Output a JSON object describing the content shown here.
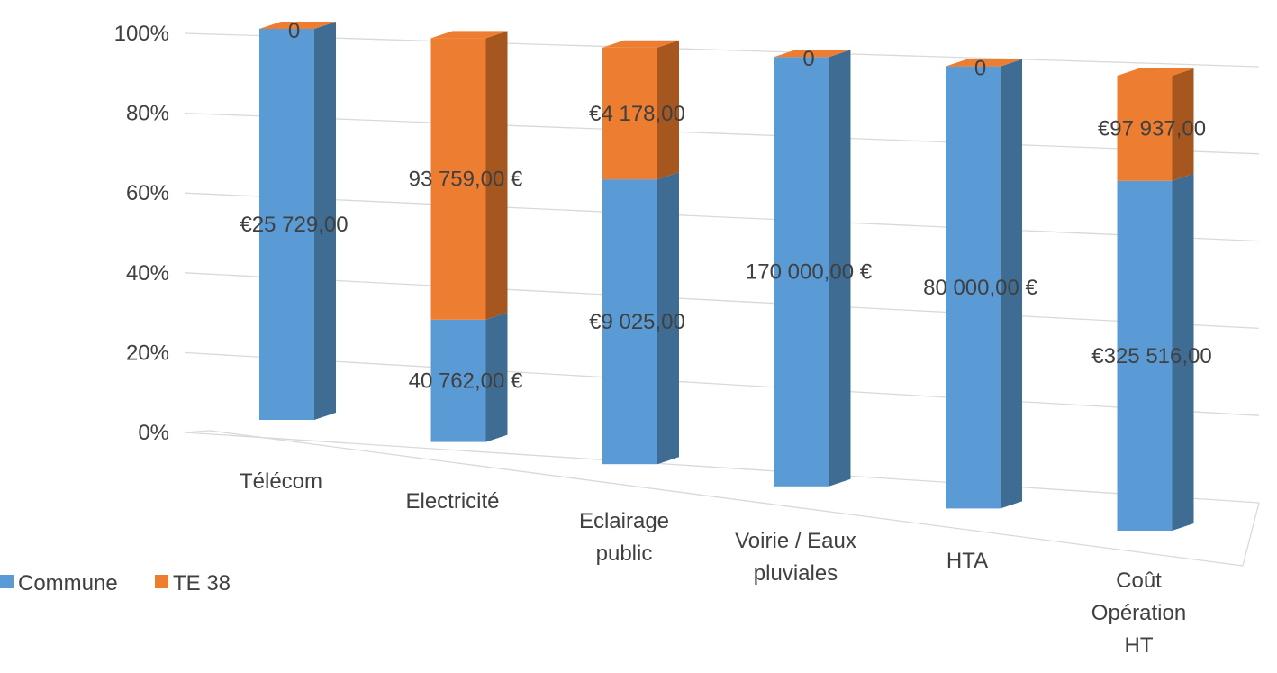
{
  "chart_data": {
    "type": "bar",
    "stacked": true,
    "normalized": true,
    "three_d": true,
    "categories": [
      [
        "Télécom"
      ],
      [
        "Electricité"
      ],
      [
        "Eclairage",
        "public"
      ],
      [
        "Voirie / Eaux",
        "pluviales"
      ],
      [
        "HTA"
      ],
      [
        "Coût",
        "Opération",
        "HT"
      ]
    ],
    "series": [
      {
        "name": "Commune",
        "color": "#5b9bd5",
        "side_color": "#3f6c93",
        "values": [
          25729,
          40762,
          9025,
          170000,
          80000,
          325516
        ],
        "labels": [
          "€25 729,00",
          "40 762,00 €",
          "€9 025,00",
          "170 000,00 €",
          "80 000,00 €",
          "€325 516,00"
        ]
      },
      {
        "name": "TE 38",
        "color": "#ed7d31",
        "side_color": "#a5571f",
        "values": [
          0,
          93759,
          4178,
          0,
          0,
          97937
        ],
        "labels": [
          "0",
          "93 759,00 €",
          "€4 178,00",
          "0",
          "0",
          "€97 937,00"
        ]
      }
    ],
    "y_ticks": [
      "0%",
      "20%",
      "40%",
      "60%",
      "80%",
      "100%"
    ],
    "ylim": [
      0,
      1
    ],
    "grid": true,
    "legend": "bottom-left"
  }
}
